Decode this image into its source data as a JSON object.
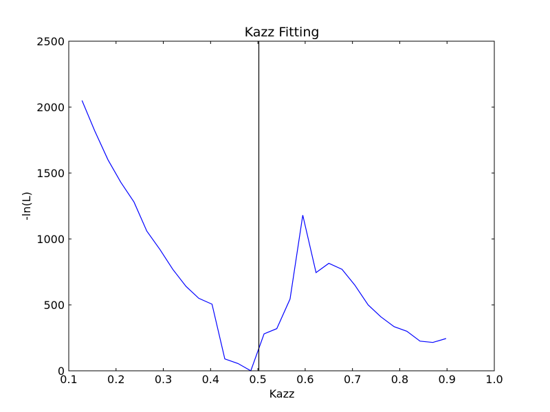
{
  "chart_data": {
    "type": "line",
    "title": "Kazz Fitting",
    "xlabel": "Kazz",
    "ylabel": "-ln(L)",
    "xlim": [
      0.1,
      1.0
    ],
    "ylim": [
      0,
      2500
    ],
    "x_ticks": [
      0.1,
      0.2,
      0.3,
      0.4,
      0.5,
      0.6,
      0.7,
      0.8,
      0.9,
      1.0
    ],
    "y_ticks": [
      0,
      500,
      1000,
      1500,
      2000,
      2500
    ],
    "x_tick_labels": [
      "0.1",
      "0.2",
      "0.3",
      "0.4",
      "0.5",
      "0.6",
      "0.7",
      "0.8",
      "0.9",
      "1.0"
    ],
    "y_tick_labels": [
      "0",
      "500",
      "1000",
      "1500",
      "2000",
      "2500"
    ],
    "grid": false,
    "vline": {
      "x": 0.502,
      "color": "#000000"
    },
    "series": [
      {
        "color": "#0000ff",
        "x": [
          0.128,
          0.155,
          0.183,
          0.21,
          0.238,
          0.265,
          0.293,
          0.32,
          0.348,
          0.375,
          0.403,
          0.43,
          0.458,
          0.485,
          0.513,
          0.54,
          0.568,
          0.595,
          0.623,
          0.65,
          0.678,
          0.705,
          0.733,
          0.76,
          0.788,
          0.815,
          0.843,
          0.87,
          0.898
        ],
        "values": [
          2050,
          1820,
          1600,
          1430,
          1280,
          1060,
          920,
          770,
          640,
          550,
          505,
          90,
          55,
          0,
          280,
          320,
          545,
          1180,
          745,
          815,
          770,
          650,
          500,
          410,
          335,
          300,
          225,
          215,
          245
        ]
      }
    ]
  }
}
